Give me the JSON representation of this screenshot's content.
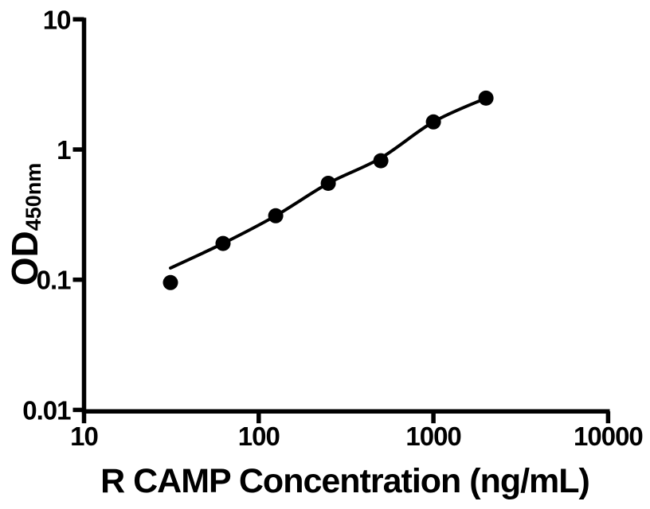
{
  "figure": {
    "background": "#ffffff",
    "foreground": "#000000"
  },
  "chart_data": {
    "type": "scatter",
    "title": "",
    "xlabel": "R CAMP Concentration (ng/mL)",
    "ylabel_main": "OD",
    "ylabel_sub": "450nm",
    "x_scale": "log",
    "y_scale": "log",
    "xlim": [
      10,
      10000
    ],
    "ylim": [
      0.01,
      10
    ],
    "grid": false,
    "legend": false,
    "x_tick_values": [
      10,
      100,
      1000,
      10000
    ],
    "x_tick_labels": [
      "10",
      "100",
      "1000",
      "10000"
    ],
    "y_tick_values": [
      10,
      1,
      0.1,
      0.01
    ],
    "y_tick_labels": [
      "10",
      "1",
      "0.1",
      "0.01"
    ],
    "series": [
      {
        "name": "standard-curve-points",
        "marker": "filled-circle",
        "marker_color": "#000000",
        "x": [
          31.25,
          62.5,
          125,
          250,
          500,
          1000,
          2000
        ],
        "y": [
          0.095,
          0.19,
          0.31,
          0.55,
          0.82,
          1.63,
          2.48
        ]
      }
    ],
    "fit_curve": {
      "name": "four-parameter-fit-line",
      "line_color": "#000000",
      "x": [
        31.25,
        62.5,
        125,
        250,
        500,
        1000,
        2000
      ],
      "y": [
        0.123,
        0.19,
        0.31,
        0.55,
        0.86,
        1.63,
        2.48
      ]
    }
  }
}
